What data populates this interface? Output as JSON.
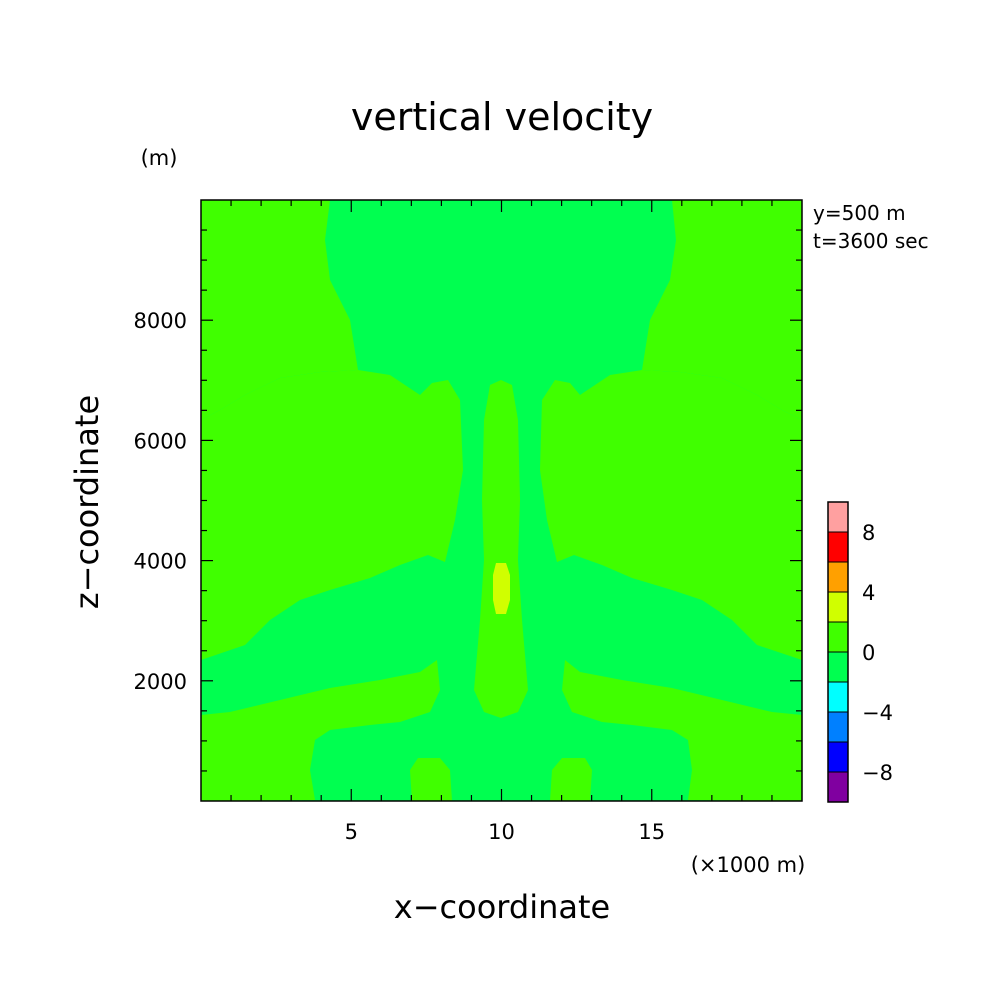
{
  "chart_data": {
    "type": "heatmap",
    "title": "vertical velocity",
    "xlabel": "x−coordinate",
    "ylabel": "z−coordinate",
    "x_unit": "(×1000 m)",
    "y_unit": "(m)",
    "info": [
      "y=500 m",
      "t=3600 sec"
    ],
    "xlim": [
      0,
      20
    ],
    "ylim": [
      0,
      10000
    ],
    "x_ticks": [
      5,
      10,
      15
    ],
    "x_tick_labels": [
      "5",
      "10",
      "15"
    ],
    "y_ticks": [
      2000,
      4000,
      6000,
      8000
    ],
    "y_tick_labels": [
      "2000",
      "4000",
      "6000",
      "8000"
    ],
    "colorbar": {
      "levels": [
        -10,
        -8,
        -6,
        -4,
        -2,
        0,
        2,
        4,
        6,
        8,
        10
      ],
      "colors": [
        "#8000a0",
        "#0000ff",
        "#0080ff",
        "#00ffff",
        "#00ff50",
        "#40ff00",
        "#d0ff00",
        "#ffa000",
        "#ff0000",
        "#ffa0a0"
      ],
      "tick_values": [
        -8,
        -4,
        0,
        4,
        8
      ],
      "tick_labels": [
        "−8",
        "−4",
        "0",
        "4",
        "8"
      ]
    },
    "fields": {
      "background_level": "-2 to 0",
      "background_color": "#00ff50",
      "positive_level": "0 to 2",
      "positive_color": "#40ff00",
      "max_level": "2 to 4",
      "max_color": "#d0ff00",
      "max_location": {
        "x": 10,
        "z": 3600
      }
    }
  }
}
